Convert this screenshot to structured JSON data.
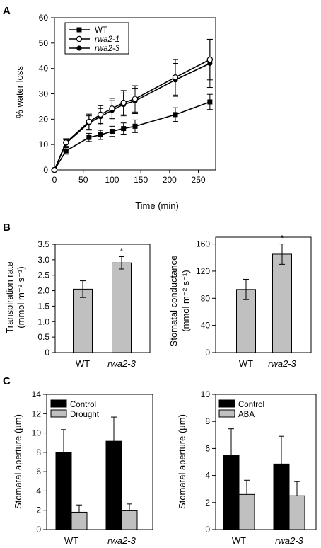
{
  "panels": {
    "a": {
      "letter": "A"
    },
    "b": {
      "letter": "B"
    },
    "c": {
      "letter": "C"
    }
  },
  "colors": {
    "black_bar": "#000000",
    "gray_bar": "#c0c0c0",
    "open_marker_fill": "#ffffff"
  },
  "chart_data": [
    {
      "id": "water_loss",
      "type": "line",
      "xlabel": "Time (min)",
      "ylabel": "% water loss",
      "xlim": [
        0,
        280
      ],
      "ylim": [
        0,
        60
      ],
      "xticks": [
        0,
        50,
        100,
        150,
        200,
        250
      ],
      "yticks": [
        0,
        10,
        20,
        30,
        40,
        50,
        60
      ],
      "legend_position": "top-left",
      "series": [
        {
          "name": "WT",
          "marker": "filled-square",
          "x": [
            0,
            20,
            60,
            80,
            100,
            120,
            140,
            210,
            270
          ],
          "y": [
            0,
            7.5,
            12.8,
            13.8,
            15.2,
            16.3,
            17.2,
            21.8,
            26.8
          ],
          "err": [
            0,
            1.3,
            1.6,
            1.8,
            2.0,
            2.2,
            2.5,
            2.7,
            3.0
          ]
        },
        {
          "name": "rwa2-1",
          "marker": "open-circle",
          "x": [
            0,
            20,
            60,
            80,
            100,
            120,
            140,
            210,
            270
          ],
          "y": [
            0,
            10.8,
            19.0,
            21.8,
            24.2,
            26.5,
            28.0,
            36.5,
            43.5
          ],
          "err": [
            0,
            1.5,
            3.0,
            3.5,
            4.0,
            4.8,
            5.2,
            7.0,
            8.0
          ]
        },
        {
          "name": "rwa2-3",
          "marker": "filled-circle",
          "x": [
            0,
            20,
            60,
            80,
            100,
            120,
            140,
            210,
            270
          ],
          "y": [
            0,
            10.5,
            18.5,
            21.0,
            23.5,
            25.8,
            27.2,
            35.5,
            42.0
          ],
          "err": [
            0,
            1.4,
            2.8,
            3.2,
            3.8,
            4.5,
            5.0,
            6.5,
            9.5
          ]
        }
      ]
    },
    {
      "id": "transpiration",
      "type": "bar",
      "ylabel_line1": "Transpiration rate",
      "ylabel_line2": "(mmol m⁻² s⁻¹)",
      "ylim": [
        0,
        3.5
      ],
      "yticks": [
        "0",
        "0.5",
        "1.0",
        "1.5",
        "2.0",
        "2.5",
        "3.0",
        "3.5"
      ],
      "categories": [
        "WT",
        "rwa2-3"
      ],
      "values": [
        2.05,
        2.9
      ],
      "err": [
        0.27,
        0.2
      ],
      "annotations": [
        "",
        "*"
      ]
    },
    {
      "id": "stomatal_conductance",
      "type": "bar",
      "ylabel_line1": "Stomatal conductance",
      "ylabel_line2": "(mmol m⁻² s⁻¹)",
      "ylim": [
        0,
        170
      ],
      "yticks": [
        "0",
        "40",
        "80",
        "120",
        "160"
      ],
      "categories": [
        "WT",
        "rwa2-3"
      ],
      "values": [
        93,
        145
      ],
      "err": [
        15,
        15
      ],
      "annotations": [
        "",
        "*"
      ]
    },
    {
      "id": "aperture_drought",
      "type": "bar",
      "ylabel": "Stomatal aperture (µm)",
      "ylim": [
        0,
        14
      ],
      "yticks": [
        "0",
        "2",
        "4",
        "6",
        "8",
        "10",
        "12",
        "14"
      ],
      "categories": [
        "WT",
        "rwa2-3"
      ],
      "legend_position": "top-left",
      "series": [
        {
          "name": "Control",
          "values": [
            8.0,
            9.15
          ],
          "err": [
            2.35,
            2.5
          ]
        },
        {
          "name": "Drought",
          "values": [
            1.8,
            1.95
          ],
          "err": [
            0.75,
            0.7
          ]
        }
      ]
    },
    {
      "id": "aperture_aba",
      "type": "bar",
      "ylabel": "Stomatal aperture (µm)",
      "ylim": [
        0,
        10
      ],
      "yticks": [
        "0",
        "2",
        "4",
        "6",
        "8",
        "10"
      ],
      "categories": [
        "WT",
        "rwa2-3"
      ],
      "legend_position": "top-left",
      "series": [
        {
          "name": "Control",
          "values": [
            5.5,
            4.85
          ],
          "err": [
            1.95,
            2.05
          ]
        },
        {
          "name": "ABA",
          "values": [
            2.6,
            2.5
          ],
          "err": [
            1.05,
            1.05
          ]
        }
      ]
    }
  ]
}
